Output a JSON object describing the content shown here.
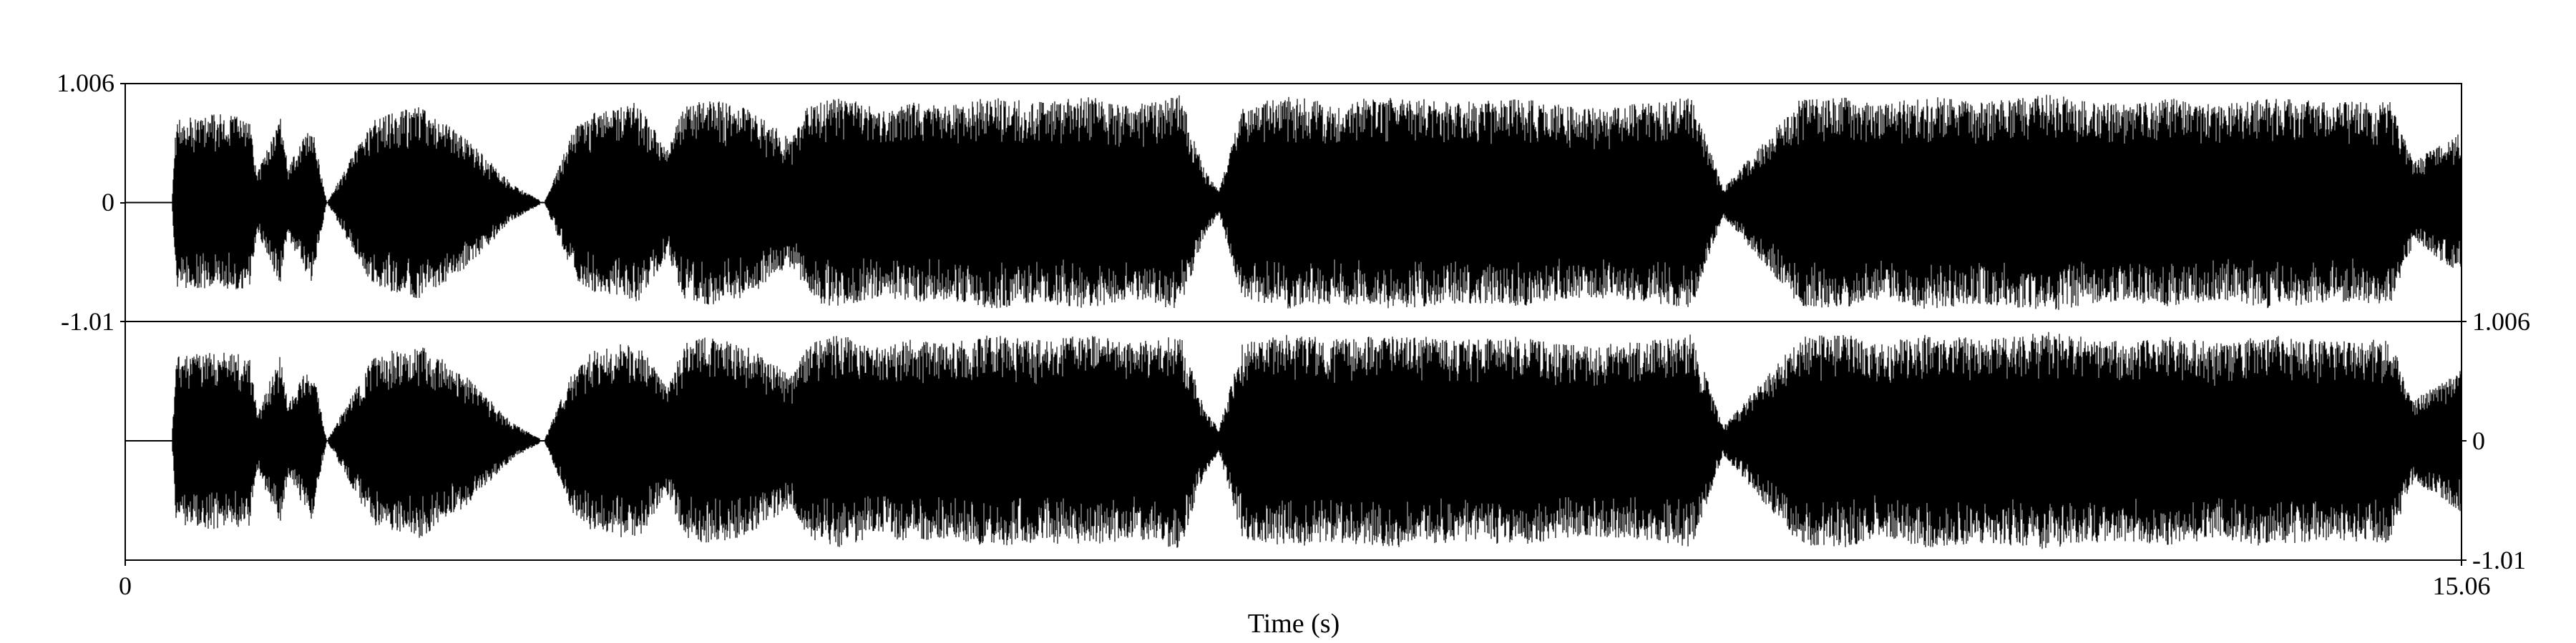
{
  "chart_data": {
    "type": "line",
    "subtype": "stereo waveform",
    "xlabel": "Time (s)",
    "xlim": [
      0,
      15.06
    ],
    "x_ticks": [
      "0",
      "15.06"
    ],
    "channels": [
      {
        "ylim": [
          -1.01,
          1.006
        ],
        "y_ticks": [
          "1.006",
          "0",
          "-1.01"
        ],
        "tick_side": "left"
      },
      {
        "ylim": [
          -1.01,
          1.006
        ],
        "y_ticks": [
          "1.006",
          "0",
          "-1.01"
        ],
        "tick_side": "right"
      }
    ],
    "grid": false,
    "color": "#000000",
    "envelope": {
      "t": [
        0,
        0.3,
        0.33,
        0.6,
        0.8,
        0.85,
        1.0,
        1.05,
        1.2,
        1.3,
        1.6,
        1.9,
        2.2,
        2.5,
        2.7,
        2.9,
        3.0,
        3.3,
        3.5,
        3.6,
        3.75,
        4.0,
        4.3,
        4.4,
        4.6,
        4.9,
        5.0,
        5.3,
        5.6,
        5.9,
        6.2,
        6.5,
        6.8,
        6.95,
        7.05,
        7.2,
        7.5,
        7.8,
        8.2,
        8.6,
        9.0,
        9.4,
        9.8,
        10.1,
        10.3,
        10.8,
        11.1,
        11.3,
        11.6,
        12.0,
        12.4,
        12.8,
        13.2,
        13.5,
        13.8,
        14.2,
        14.6,
        14.75,
        15.06
      ],
      "amp": [
        0.0,
        0.01,
        0.72,
        0.75,
        0.72,
        0.25,
        0.72,
        0.3,
        0.68,
        0.0,
        0.72,
        0.82,
        0.55,
        0.15,
        0.0,
        0.65,
        0.75,
        0.85,
        0.45,
        0.82,
        0.88,
        0.8,
        0.55,
        0.82,
        0.9,
        0.78,
        0.86,
        0.82,
        0.9,
        0.85,
        0.9,
        0.82,
        0.92,
        0.3,
        0.1,
        0.82,
        0.9,
        0.86,
        0.9,
        0.85,
        0.88,
        0.8,
        0.84,
        0.9,
        0.12,
        0.88,
        0.9,
        0.82,
        0.9,
        0.86,
        0.92,
        0.84,
        0.88,
        0.82,
        0.9,
        0.85,
        0.86,
        0.35,
        0.6
      ]
    }
  }
}
